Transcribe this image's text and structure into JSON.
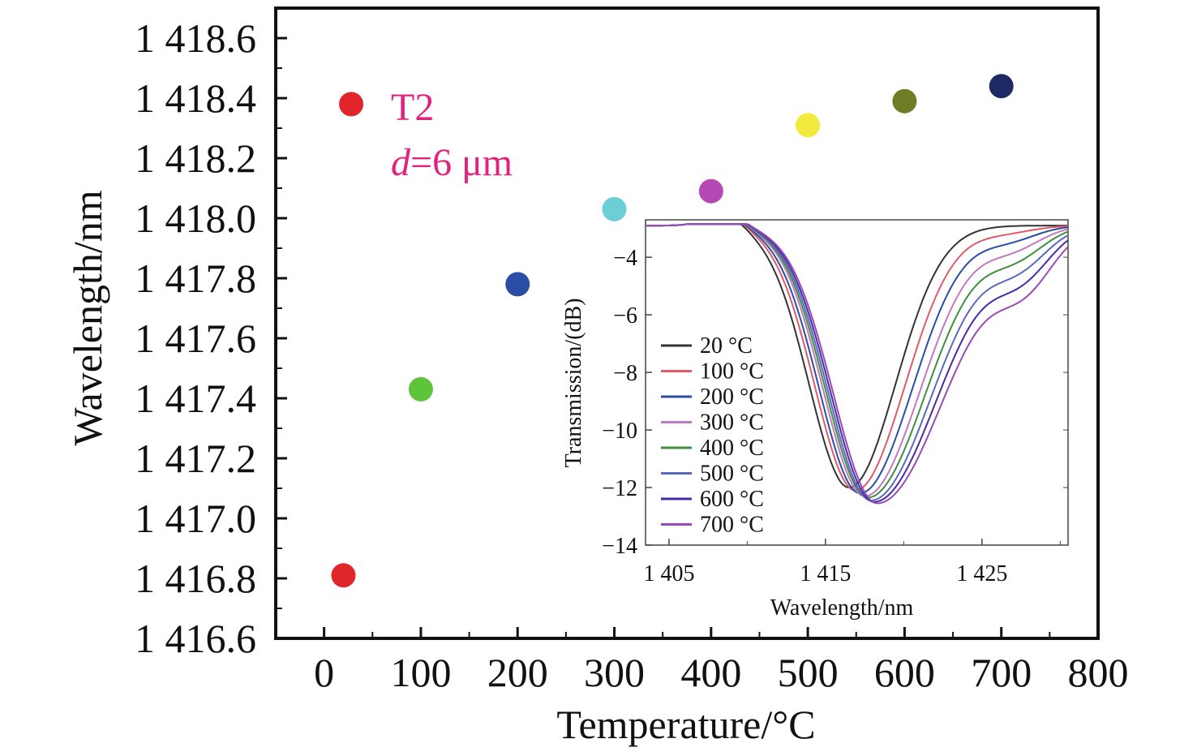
{
  "chart_data": [
    {
      "type": "scatter",
      "xlabel": "Temperature/°C",
      "ylabel": "Wavelength/nm",
      "xlim": [
        -50,
        800
      ],
      "ylim": [
        1416.6,
        1418.7
      ],
      "xticks": [
        0,
        100,
        200,
        300,
        400,
        500,
        600,
        700,
        800
      ],
      "xtick_labels": [
        "0",
        "100",
        "200",
        "300",
        "400",
        "500",
        "600",
        "700",
        "800"
      ],
      "yticks": [
        1416.6,
        1416.8,
        1417.0,
        1417.2,
        1417.4,
        1417.6,
        1417.8,
        1418.0,
        1418.2,
        1418.4,
        1418.6
      ],
      "ytick_labels": [
        "1 416.6",
        "1 416.8",
        "1 417.0",
        "1 417.2",
        "1 417.4",
        "1 417.6",
        "1 417.8",
        "1 418.0",
        "1 418.2",
        "1 418.4",
        "1 418.6"
      ],
      "grid": false,
      "annotation_line1": "T2",
      "annotation_var": "d",
      "annotation_rest": "=6 μm",
      "annotation_color": "#e0237f",
      "legend_marker": {
        "x": 28,
        "y": 1418.38,
        "color": "#e0262a"
      },
      "points": [
        {
          "x": 20,
          "y": 1416.81,
          "color": "#e0262a"
        },
        {
          "x": 100,
          "y": 1417.43,
          "color": "#5ec43a"
        },
        {
          "x": 200,
          "y": 1417.78,
          "color": "#2a4ea6"
        },
        {
          "x": 300,
          "y": 1418.03,
          "color": "#6ccfd8"
        },
        {
          "x": 400,
          "y": 1418.09,
          "color": "#b54ab6"
        },
        {
          "x": 500,
          "y": 1418.31,
          "color": "#f3ea3e"
        },
        {
          "x": 600,
          "y": 1418.39,
          "color": "#6f7d27"
        },
        {
          "x": 700,
          "y": 1418.44,
          "color": "#1e2a66"
        }
      ]
    },
    {
      "type": "line",
      "xlabel": "Wavelength/nm",
      "ylabel": "Transmission/(dB)",
      "xlim": [
        1403.5,
        1430.5
      ],
      "ylim": [
        -14,
        -2.7
      ],
      "xticks": [
        1405,
        1415,
        1425
      ],
      "xtick_labels": [
        "1 405",
        "1 415",
        "1 425"
      ],
      "yticks": [
        -14,
        -12,
        -10,
        -8,
        -6,
        -4
      ],
      "ytick_labels": [
        "−14",
        "−12",
        "−10",
        "−8",
        "−6",
        "−4"
      ],
      "legend_position": "left",
      "series": [
        {
          "name": "20 °C",
          "color": "#333333",
          "dip_center": 1416.5,
          "dip_depth": -12.0
        },
        {
          "name": "100 °C",
          "color": "#e05a6a",
          "dip_center": 1416.9,
          "dip_depth": -12.1
        },
        {
          "name": "200 °C",
          "color": "#2a4ea6",
          "dip_center": 1417.2,
          "dip_depth": -12.2
        },
        {
          "name": "300 °C",
          "color": "#c07ac0",
          "dip_center": 1417.5,
          "dip_depth": -12.3
        },
        {
          "name": "400 °C",
          "color": "#3f8f3f",
          "dip_center": 1417.7,
          "dip_depth": -12.35
        },
        {
          "name": "500 °C",
          "color": "#5a6ac0",
          "dip_center": 1417.9,
          "dip_depth": -12.45
        },
        {
          "name": "600 °C",
          "color": "#4a2aa6",
          "dip_center": 1418.1,
          "dip_depth": -12.5
        },
        {
          "name": "700 °C",
          "color": "#9a4ab6",
          "dip_center": 1418.3,
          "dip_depth": -12.55
        }
      ]
    }
  ]
}
